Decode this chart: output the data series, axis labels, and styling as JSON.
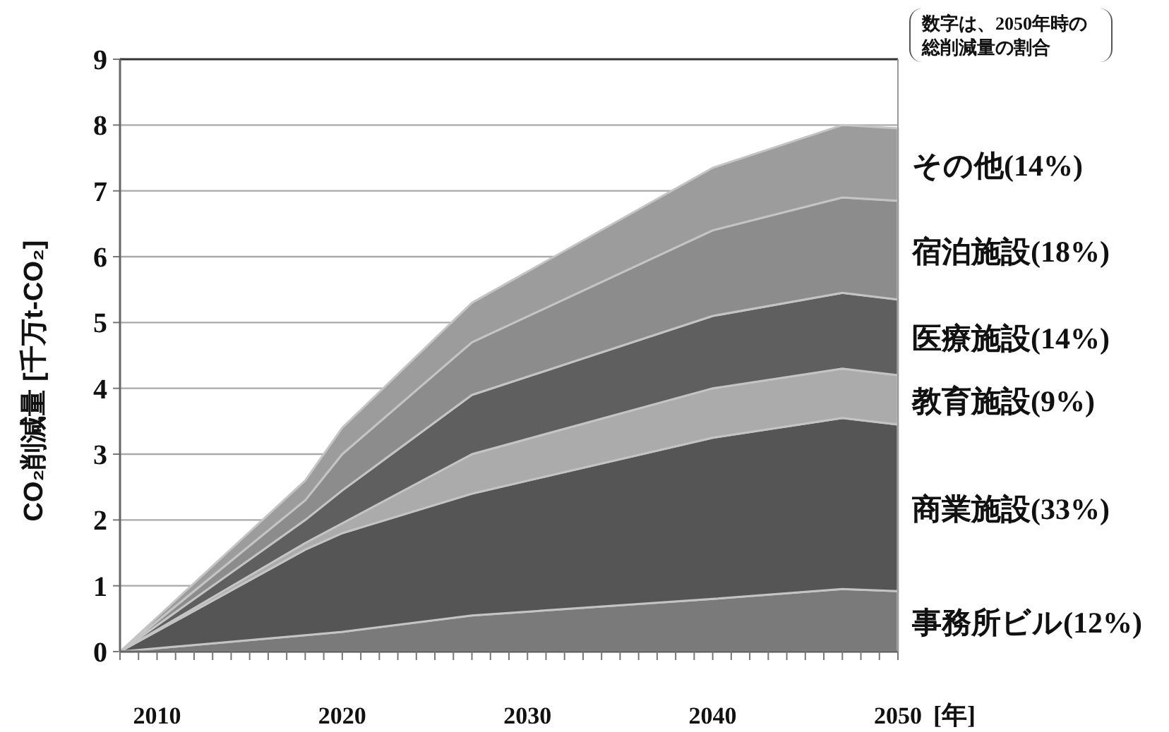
{
  "chart_data": {
    "type": "area",
    "stacked": true,
    "ylabel": "CO₂削減量 [千万t-CO₂]",
    "xlabel": "[年]",
    "annotations": [
      "数字は、2050年時の総削減量の割合"
    ],
    "x": [
      2008,
      2018,
      2020,
      2027,
      2040,
      2047,
      2050
    ],
    "xlim": [
      2008,
      2050
    ],
    "xticks": [
      {
        "value": 2008,
        "label": null
      },
      {
        "value": 2009,
        "label": null
      },
      2010,
      {
        "value": 2011,
        "label": null
      },
      {
        "value": 2012,
        "label": null
      },
      {
        "value": 2013,
        "label": null
      },
      {
        "value": 2014,
        "label": null
      },
      {
        "value": 2015,
        "label": null
      },
      {
        "value": 2016,
        "label": null
      },
      {
        "value": 2017,
        "label": null
      },
      {
        "value": 2018,
        "label": null
      },
      {
        "value": 2019,
        "label": null
      },
      2020,
      {
        "value": 2021,
        "label": null
      },
      {
        "value": 2022,
        "label": null
      },
      {
        "value": 2023,
        "label": null
      },
      {
        "value": 2024,
        "label": null
      },
      {
        "value": 2025,
        "label": null
      },
      {
        "value": 2026,
        "label": null
      },
      {
        "value": 2027,
        "label": null
      },
      {
        "value": 2028,
        "label": null
      },
      {
        "value": 2029,
        "label": null
      },
      2030,
      {
        "value": 2031,
        "label": null
      },
      {
        "value": 2032,
        "label": null
      },
      {
        "value": 2033,
        "label": null
      },
      {
        "value": 2034,
        "label": null
      },
      {
        "value": 2035,
        "label": null
      },
      {
        "value": 2036,
        "label": null
      },
      {
        "value": 2037,
        "label": null
      },
      {
        "value": 2038,
        "label": null
      },
      {
        "value": 2039,
        "label": null
      },
      2040,
      {
        "value": 2041,
        "label": null
      },
      {
        "value": 2042,
        "label": null
      },
      {
        "value": 2043,
        "label": null
      },
      {
        "value": 2044,
        "label": null
      },
      {
        "value": 2045,
        "label": null
      },
      {
        "value": 2046,
        "label": null
      },
      {
        "value": 2047,
        "label": null
      },
      {
        "value": 2048,
        "label": null
      },
      {
        "value": 2049,
        "label": null
      },
      2050
    ],
    "ylim": [
      0,
      9
    ],
    "yticks": [
      0,
      1,
      2,
      3,
      4,
      5,
      6,
      7,
      8,
      9
    ],
    "grid": "y",
    "series": [
      {
        "name": "事務所ビル(12%)",
        "color": "#7a7a7a",
        "values": [
          0,
          0.25,
          0.3,
          0.55,
          0.8,
          0.95,
          0.92
        ]
      },
      {
        "name": "商業施設(33%)",
        "color": "#555555",
        "values": [
          0,
          1.3,
          1.5,
          1.85,
          2.45,
          2.6,
          2.53
        ]
      },
      {
        "name": "教育施設(9%)",
        "color": "#ababab",
        "values": [
          0,
          0.1,
          0.15,
          0.6,
          0.75,
          0.75,
          0.75
        ]
      },
      {
        "name": "医療施設(14%)",
        "color": "#5f5f5f",
        "values": [
          0,
          0.35,
          0.5,
          0.9,
          1.1,
          1.15,
          1.15
        ]
      },
      {
        "name": "宿泊施設(18%)",
        "color": "#8c8c8c",
        "values": [
          0,
          0.3,
          0.55,
          0.8,
          1.3,
          1.45,
          1.5
        ]
      },
      {
        "name": "その他(14%)",
        "color": "#9c9c9c",
        "values": [
          0,
          0.3,
          0.4,
          0.6,
          0.95,
          1.1,
          1.1
        ]
      }
    ]
  }
}
